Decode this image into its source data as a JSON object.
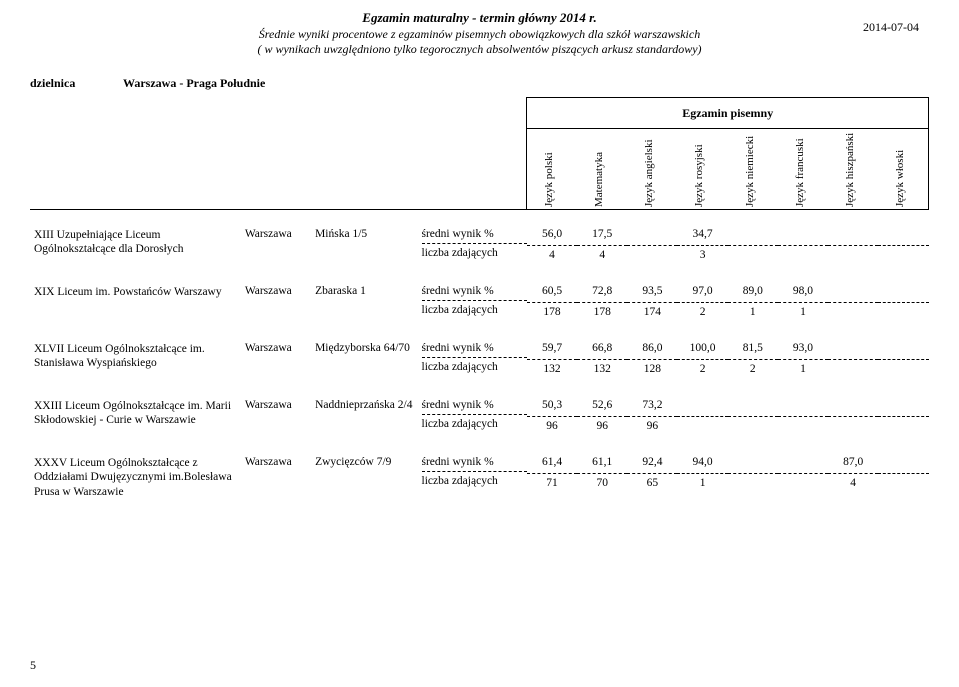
{
  "header": {
    "title_main": "Egzamin maturalny - termin główny 2014 r.",
    "subtitle1": "Średnie wyniki procentowe z egzaminów pisemnych obowiązkowych dla szkół warszawskich",
    "subtitle2": "( w wynikach uwzględniono  tylko tegorocznych absolwentów piszących arkusz standardowy)",
    "date": "2014-07-04"
  },
  "district": {
    "label": "dzielnica",
    "value": "Warszawa - Praga Południe"
  },
  "exam_group_label": "Egzamin pisemny",
  "columns": [
    "Język polski",
    "Matematyka",
    "Język angielski",
    "Język rosyjski",
    "Język niemiecki",
    "Język francuski",
    "Język hiszpański",
    "Język włoski"
  ],
  "metric_labels": {
    "avg": "średni wynik %",
    "count": "liczba zdających"
  },
  "city_label": "Warszawa",
  "rows": [
    {
      "school": "XIII Uzupełniające Liceum Ogólnokształcące dla Dorosłych",
      "address": "Mińska 1/5",
      "avg": [
        "56,0",
        "17,5",
        "",
        "34,7",
        "",
        "",
        "",
        ""
      ],
      "count": [
        "4",
        "4",
        "",
        "3",
        "",
        "",
        "",
        ""
      ]
    },
    {
      "school": "XIX Liceum im. Powstańców Warszawy",
      "address": "Zbaraska 1",
      "avg": [
        "60,5",
        "72,8",
        "93,5",
        "97,0",
        "89,0",
        "98,0",
        "",
        ""
      ],
      "count": [
        "178",
        "178",
        "174",
        "2",
        "1",
        "1",
        "",
        ""
      ]
    },
    {
      "school": "XLVII Liceum Ogólnokształcące im. Stanisława Wyspiańskiego",
      "address": "Międzyborska 64/70",
      "avg": [
        "59,7",
        "66,8",
        "86,0",
        "100,0",
        "81,5",
        "93,0",
        "",
        ""
      ],
      "count": [
        "132",
        "132",
        "128",
        "2",
        "2",
        "1",
        "",
        ""
      ]
    },
    {
      "school": "XXIII Liceum Ogólnokształcące im. Marii Skłodowskiej - Curie w Warszawie",
      "address": "Naddnieprzańska 2/4",
      "avg": [
        "50,3",
        "52,6",
        "73,2",
        "",
        "",
        "",
        "",
        ""
      ],
      "count": [
        "96",
        "96",
        "96",
        "",
        "",
        "",
        "",
        ""
      ]
    },
    {
      "school": "XXXV Liceum Ogólnokształcące z Oddziałami Dwujęzycznymi im.Bolesława Prusa w Warszawie",
      "address": "Zwycięzców 7/9",
      "avg": [
        "61,4",
        "61,1",
        "92,4",
        "94,0",
        "",
        "",
        "87,0",
        ""
      ],
      "count": [
        "71",
        "70",
        "65",
        "1",
        "",
        "",
        "4",
        ""
      ]
    }
  ],
  "page_number": "5",
  "style": {
    "background_color": "#ffffff",
    "text_color": "#000000",
    "font_family": "Times New Roman",
    "dash_color": "#000000"
  }
}
